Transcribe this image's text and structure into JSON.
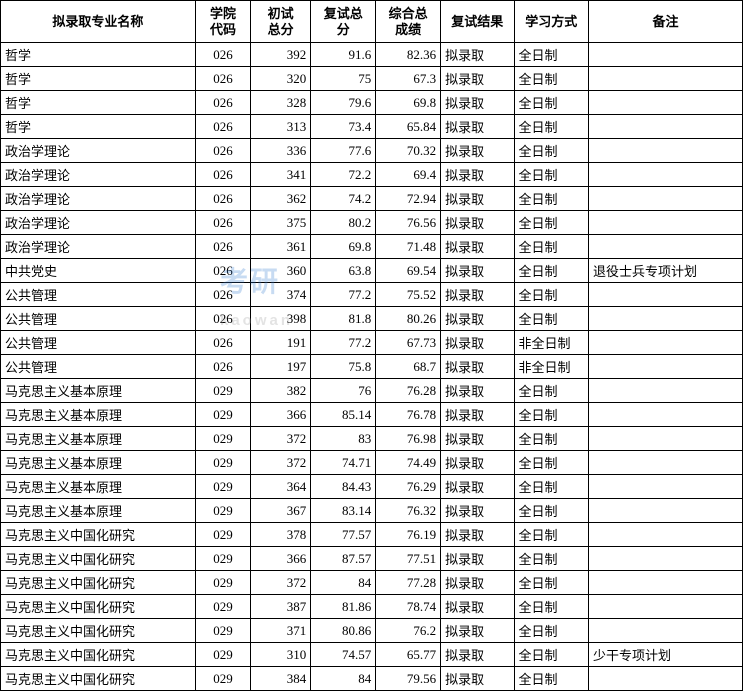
{
  "columns": [
    "拟录取专业名称",
    "学院\n代码",
    "初试\n总分",
    "复试总\n分",
    "综合总\n成绩",
    "复试结果",
    "学习方式",
    "备注"
  ],
  "rows": [
    [
      "哲学",
      "026",
      "392",
      "91.6",
      "82.36",
      "拟录取",
      "全日制",
      ""
    ],
    [
      "哲学",
      "026",
      "320",
      "75",
      "67.3",
      "拟录取",
      "全日制",
      ""
    ],
    [
      "哲学",
      "026",
      "328",
      "79.6",
      "69.8",
      "拟录取",
      "全日制",
      ""
    ],
    [
      "哲学",
      "026",
      "313",
      "73.4",
      "65.84",
      "拟录取",
      "全日制",
      ""
    ],
    [
      "政治学理论",
      "026",
      "336",
      "77.6",
      "70.32",
      "拟录取",
      "全日制",
      ""
    ],
    [
      "政治学理论",
      "026",
      "341",
      "72.2",
      "69.4",
      "拟录取",
      "全日制",
      ""
    ],
    [
      "政治学理论",
      "026",
      "362",
      "74.2",
      "72.94",
      "拟录取",
      "全日制",
      ""
    ],
    [
      "政治学理论",
      "026",
      "375",
      "80.2",
      "76.56",
      "拟录取",
      "全日制",
      ""
    ],
    [
      "政治学理论",
      "026",
      "361",
      "69.8",
      "71.48",
      "拟录取",
      "全日制",
      ""
    ],
    [
      "中共党史",
      "026",
      "360",
      "63.8",
      "69.54",
      "拟录取",
      "全日制",
      "退役士兵专项计划"
    ],
    [
      "公共管理",
      "026",
      "374",
      "77.2",
      "75.52",
      "拟录取",
      "全日制",
      ""
    ],
    [
      "公共管理",
      "026",
      "398",
      "81.8",
      "80.26",
      "拟录取",
      "全日制",
      ""
    ],
    [
      "公共管理",
      "026",
      "191",
      "77.2",
      "67.73",
      "拟录取",
      "非全日制",
      ""
    ],
    [
      "公共管理",
      "026",
      "197",
      "75.8",
      "68.7",
      "拟录取",
      "非全日制",
      ""
    ],
    [
      "马克思主义基本原理",
      "029",
      "382",
      "76",
      "76.28",
      "拟录取",
      "全日制",
      ""
    ],
    [
      "马克思主义基本原理",
      "029",
      "366",
      "85.14",
      "76.78",
      "拟录取",
      "全日制",
      ""
    ],
    [
      "马克思主义基本原理",
      "029",
      "372",
      "83",
      "76.98",
      "拟录取",
      "全日制",
      ""
    ],
    [
      "马克思主义基本原理",
      "029",
      "372",
      "74.71",
      "74.49",
      "拟录取",
      "全日制",
      ""
    ],
    [
      "马克思主义基本原理",
      "029",
      "364",
      "84.43",
      "76.29",
      "拟录取",
      "全日制",
      ""
    ],
    [
      "马克思主义基本原理",
      "029",
      "367",
      "83.14",
      "76.32",
      "拟录取",
      "全日制",
      ""
    ],
    [
      "马克思主义中国化研究",
      "029",
      "378",
      "77.57",
      "76.19",
      "拟录取",
      "全日制",
      ""
    ],
    [
      "马克思主义中国化研究",
      "029",
      "366",
      "87.57",
      "77.51",
      "拟录取",
      "全日制",
      ""
    ],
    [
      "马克思主义中国化研究",
      "029",
      "372",
      "84",
      "77.28",
      "拟录取",
      "全日制",
      ""
    ],
    [
      "马克思主义中国化研究",
      "029",
      "387",
      "81.86",
      "78.74",
      "拟录取",
      "全日制",
      ""
    ],
    [
      "马克思主义中国化研究",
      "029",
      "371",
      "80.86",
      "76.2",
      "拟录取",
      "全日制",
      ""
    ],
    [
      "马克思主义中国化研究",
      "029",
      "310",
      "74.57",
      "65.77",
      "拟录取",
      "全日制",
      "少干专项计划"
    ],
    [
      "马克思主义中国化研究",
      "029",
      "384",
      "84",
      "79.56",
      "拟录取",
      "全日制",
      ""
    ]
  ],
  "col_classes": [
    "col-major",
    "col-code",
    "col-score1",
    "col-score2",
    "col-score3",
    "col-result",
    "col-mode",
    "col-remark"
  ],
  "col_align": [
    "left",
    "center",
    "right",
    "right",
    "right",
    "left",
    "left",
    "left"
  ],
  "watermark": {
    "main": "考研",
    "sub": "kaowan"
  }
}
